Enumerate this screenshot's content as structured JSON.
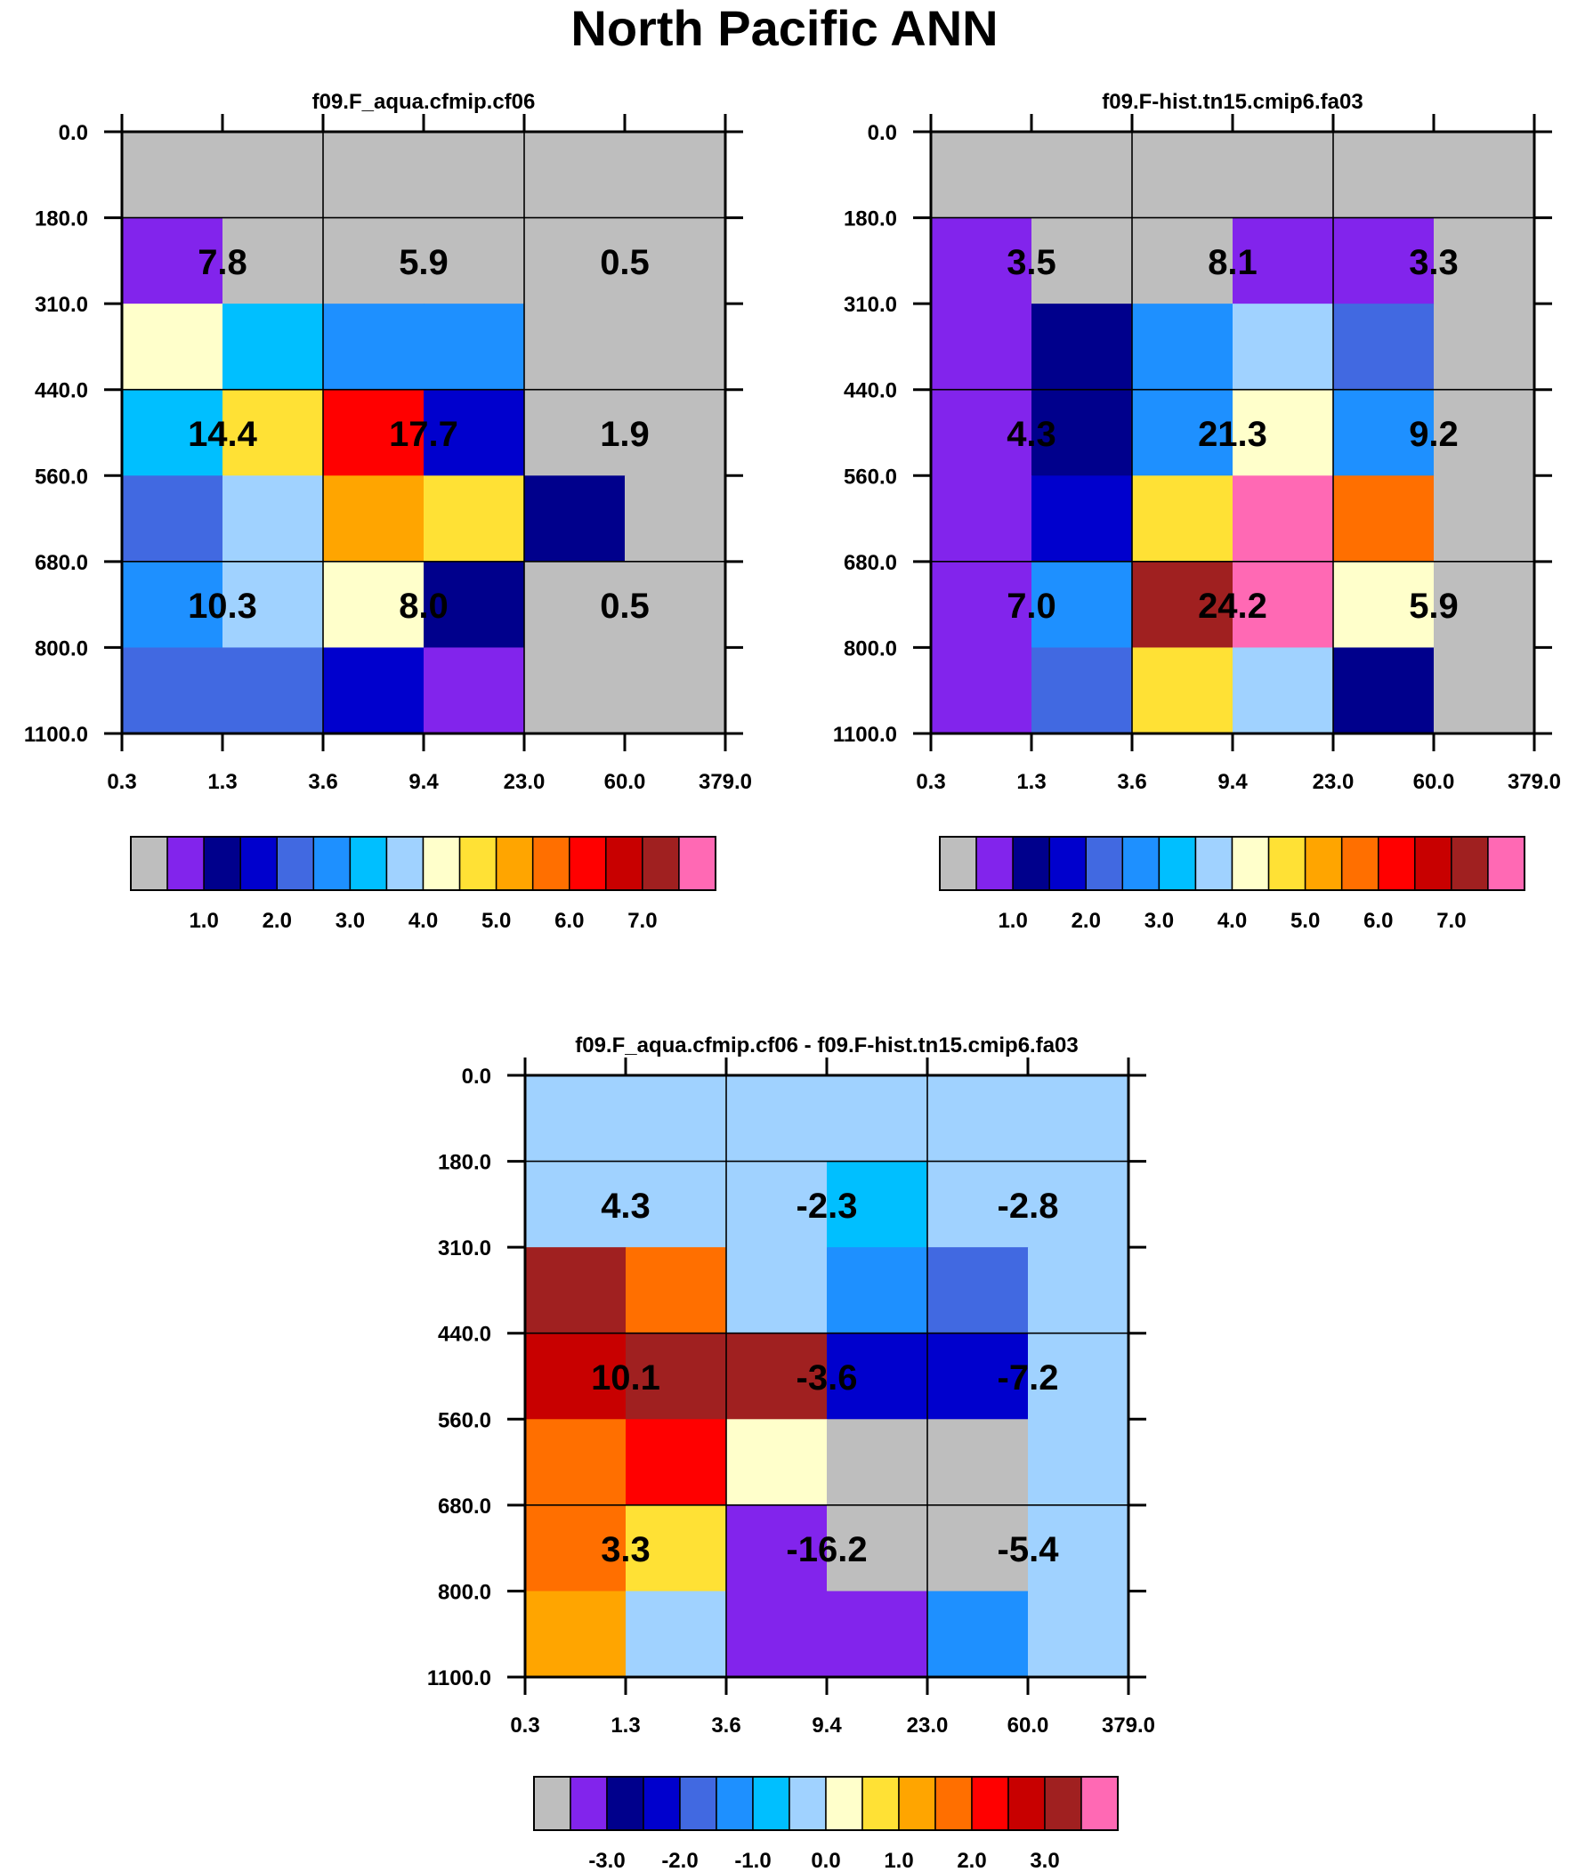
{
  "title": "North Pacific ANN",
  "chart_data": [
    {
      "type": "heatmap",
      "title": "f09.F_aqua.cfmip.cf06",
      "x_ticks": [
        "0.3",
        "1.3",
        "3.6",
        "9.4",
        "23.0",
        "60.0",
        "379.0"
      ],
      "y_ticks": [
        "0.0",
        "180.0",
        "310.0",
        "440.0",
        "560.0",
        "680.0",
        "800.0",
        "1100.0"
      ],
      "colorbar": {
        "colors": [
          "#BEBEBE",
          "#8224EC",
          "#00008C",
          "#0000CD",
          "#4169E1",
          "#1E90FF",
          "#00BFFF",
          "#A0D2FF",
          "#FFFFCB",
          "#FFE135",
          "#FFA500",
          "#FF6F00",
          "#FF0000",
          "#C80000",
          "#A02020",
          "#FF69B4"
        ],
        "labels": [
          "1.0",
          "2.0",
          "3.0",
          "4.0",
          "5.0",
          "6.0",
          "7.0"
        ]
      },
      "cell_colors": [
        [
          0,
          0,
          0,
          0,
          0,
          0
        ],
        [
          1,
          0,
          0,
          0,
          0,
          0
        ],
        [
          8,
          6,
          5,
          5,
          0,
          0
        ],
        [
          6,
          9,
          12,
          3,
          0,
          0
        ],
        [
          4,
          7,
          10,
          9,
          2,
          0
        ],
        [
          5,
          7,
          8,
          2,
          0,
          0
        ],
        [
          4,
          4,
          3,
          1,
          0,
          0
        ]
      ],
      "values": [
        "7.8",
        "5.9",
        "0.5",
        "14.4",
        "17.7",
        "1.9",
        "10.3",
        "8.0",
        "0.5"
      ]
    },
    {
      "type": "heatmap",
      "title": "f09.F-hist.tn15.cmip6.fa03",
      "x_ticks": [
        "0.3",
        "1.3",
        "3.6",
        "9.4",
        "23.0",
        "60.0",
        "379.0"
      ],
      "y_ticks": [
        "0.0",
        "180.0",
        "310.0",
        "440.0",
        "560.0",
        "680.0",
        "800.0",
        "1100.0"
      ],
      "colorbar": {
        "colors": [
          "#BEBEBE",
          "#8224EC",
          "#00008C",
          "#0000CD",
          "#4169E1",
          "#1E90FF",
          "#00BFFF",
          "#A0D2FF",
          "#FFFFCB",
          "#FFE135",
          "#FFA500",
          "#FF6F00",
          "#FF0000",
          "#C80000",
          "#A02020",
          "#FF69B4"
        ],
        "labels": [
          "1.0",
          "2.0",
          "3.0",
          "4.0",
          "5.0",
          "6.0",
          "7.0"
        ]
      },
      "cell_colors": [
        [
          0,
          0,
          0,
          0,
          0,
          0
        ],
        [
          1,
          0,
          0,
          1,
          1,
          0
        ],
        [
          1,
          2,
          5,
          7,
          4,
          0
        ],
        [
          1,
          2,
          5,
          8,
          5,
          0
        ],
        [
          1,
          3,
          9,
          15,
          11,
          0
        ],
        [
          1,
          5,
          14,
          15,
          8,
          0
        ],
        [
          1,
          4,
          9,
          7,
          2,
          0
        ]
      ],
      "values": [
        "3.5",
        "8.1",
        "3.3",
        "4.3",
        "21.3",
        "9.2",
        "7.0",
        "24.2",
        "5.9"
      ]
    },
    {
      "type": "heatmap",
      "title": "f09.F_aqua.cfmip.cf06 - f09.F-hist.tn15.cmip6.fa03",
      "x_ticks": [
        "0.3",
        "1.3",
        "3.6",
        "9.4",
        "23.0",
        "60.0",
        "379.0"
      ],
      "y_ticks": [
        "0.0",
        "180.0",
        "310.0",
        "440.0",
        "560.0",
        "680.0",
        "800.0",
        "1100.0"
      ],
      "colorbar": {
        "colors": [
          "#BEBEBE",
          "#8224EC",
          "#00008C",
          "#0000CD",
          "#4169E1",
          "#1E90FF",
          "#00BFFF",
          "#A0D2FF",
          "#FFFFCB",
          "#FFE135",
          "#FFA500",
          "#FF6F00",
          "#FF0000",
          "#C80000",
          "#A02020",
          "#FF69B4"
        ],
        "labels": [
          "-3.0",
          "-2.0",
          "-1.0",
          "0.0",
          "1.0",
          "2.0",
          "3.0"
        ]
      },
      "cell_colors": [
        [
          7,
          7,
          7,
          7,
          7,
          7
        ],
        [
          7,
          7,
          7,
          6,
          7,
          7
        ],
        [
          14,
          11,
          7,
          5,
          4,
          7
        ],
        [
          13,
          14,
          14,
          3,
          3,
          7
        ],
        [
          11,
          12,
          8,
          0,
          0,
          7
        ],
        [
          11,
          9,
          1,
          0,
          0,
          7
        ],
        [
          10,
          7,
          1,
          1,
          5,
          7
        ]
      ],
      "values": [
        "4.3",
        "-2.3",
        "-2.8",
        "10.1",
        "-3.6",
        "-7.2",
        "3.3",
        "-16.2",
        "-5.4"
      ]
    }
  ]
}
